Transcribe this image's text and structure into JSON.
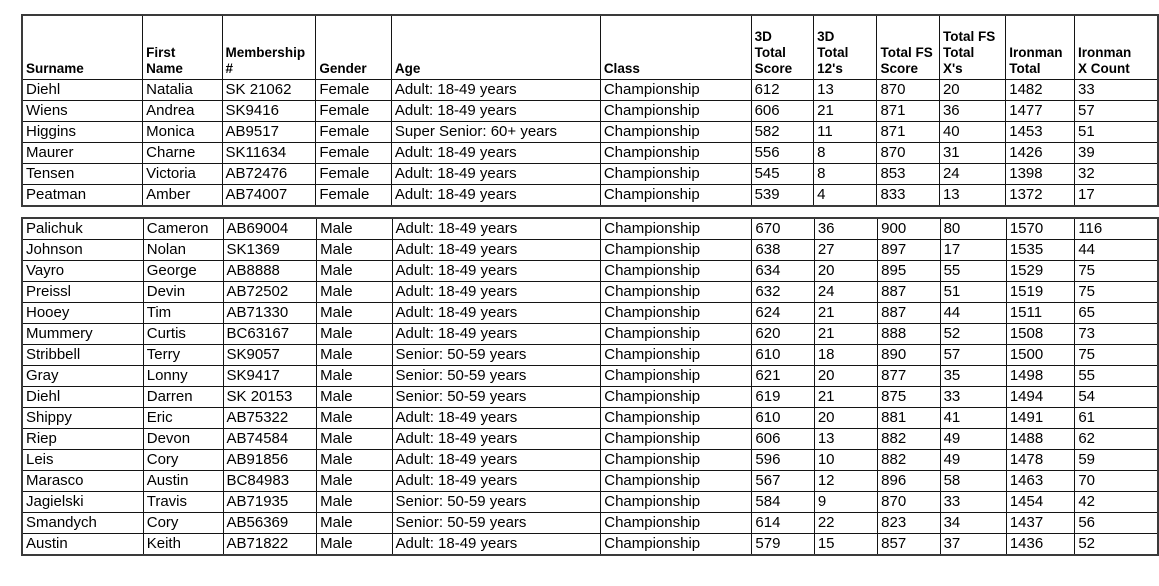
{
  "table": {
    "columns": [
      {
        "key": "surname",
        "label": "Surname"
      },
      {
        "key": "first-name",
        "label": "First\nName"
      },
      {
        "key": "membership",
        "label": "Membership\n#"
      },
      {
        "key": "gender",
        "label": "Gender"
      },
      {
        "key": "age",
        "label": "Age"
      },
      {
        "key": "class",
        "label": "Class"
      },
      {
        "key": "3d-total-score",
        "label": "3D\nTotal\nScore"
      },
      {
        "key": "3d-total-12s",
        "label": "3D\nTotal\n12's"
      },
      {
        "key": "total-fs-score",
        "label": "Total FS\nScore"
      },
      {
        "key": "total-fs-xs",
        "label": "Total FS\nTotal\nX's"
      },
      {
        "key": "ironman-total",
        "label": "Ironman\nTotal"
      },
      {
        "key": "ironman-x-count",
        "label": "Ironman\nX Count"
      }
    ],
    "groups": [
      {
        "name": "female",
        "rows": [
          [
            "Diehl",
            "Natalia",
            "SK 21062",
            "Female",
            "Adult: 18-49 years",
            "Championship",
            "612",
            "13",
            "870",
            "20",
            "1482",
            "33"
          ],
          [
            "Wiens",
            "Andrea",
            "SK9416",
            "Female",
            "Adult: 18-49 years",
            "Championship",
            "606",
            "21",
            "871",
            "36",
            "1477",
            "57"
          ],
          [
            "Higgins",
            "Monica",
            "AB9517",
            "Female",
            "Super Senior: 60+ years",
            "Championship",
            "582",
            "11",
            "871",
            "40",
            "1453",
            "51"
          ],
          [
            "Maurer",
            "Charne",
            "SK11634",
            "Female",
            "Adult: 18-49 years",
            "Championship",
            "556",
            "8",
            "870",
            "31",
            "1426",
            "39"
          ],
          [
            "Tensen",
            "Victoria",
            "AB72476",
            "Female",
            "Adult: 18-49 years",
            "Championship",
            "545",
            "8",
            "853",
            "24",
            "1398",
            "32"
          ],
          [
            "Peatman",
            "Amber",
            "AB74007",
            "Female",
            "Adult: 18-49 years",
            "Championship",
            "539",
            "4",
            "833",
            "13",
            "1372",
            "17"
          ]
        ]
      },
      {
        "name": "male",
        "rows": [
          [
            "Palichuk",
            "Cameron",
            "AB69004",
            "Male",
            "Adult: 18-49 years",
            "Championship",
            "670",
            "36",
            "900",
            "80",
            "1570",
            "116"
          ],
          [
            "Johnson",
            "Nolan",
            "SK1369",
            "Male",
            "Adult: 18-49 years",
            "Championship",
            "638",
            "27",
            "897",
            "17",
            "1535",
            "44"
          ],
          [
            "Vayro",
            "George",
            "AB8888",
            "Male",
            "Adult: 18-49 years",
            "Championship",
            "634",
            "20",
            "895",
            "55",
            "1529",
            "75"
          ],
          [
            "Preissl",
            "Devin",
            "AB72502",
            "Male",
            "Adult: 18-49 years",
            "Championship",
            "632",
            "24",
            "887",
            "51",
            "1519",
            "75"
          ],
          [
            "Hooey",
            "Tim",
            "AB71330",
            "Male",
            "Adult: 18-49 years",
            "Championship",
            "624",
            "21",
            "887",
            "44",
            "1511",
            "65"
          ],
          [
            "Mummery",
            "Curtis",
            "BC63167",
            "Male",
            "Adult: 18-49 years",
            "Championship",
            "620",
            "21",
            "888",
            "52",
            "1508",
            "73"
          ],
          [
            "Stribbell",
            "Terry",
            "SK9057",
            "Male",
            "Senior: 50-59 years",
            "Championship",
            "610",
            "18",
            "890",
            "57",
            "1500",
            "75"
          ],
          [
            "Gray",
            "Lonny",
            "SK9417",
            "Male",
            "Senior: 50-59 years",
            "Championship",
            "621",
            "20",
            "877",
            "35",
            "1498",
            "55"
          ],
          [
            "Diehl",
            "Darren",
            "SK 20153",
            "Male",
            "Senior: 50-59 years",
            "Championship",
            "619",
            "21",
            "875",
            "33",
            "1494",
            "54"
          ],
          [
            "Shippy",
            "Eric",
            "AB75322",
            "Male",
            "Adult: 18-49 years",
            "Championship",
            "610",
            "20",
            "881",
            "41",
            "1491",
            "61"
          ],
          [
            "Riep",
            "Devon",
            "AB74584",
            "Male",
            "Adult: 18-49 years",
            "Championship",
            "606",
            "13",
            "882",
            "49",
            "1488",
            "62"
          ],
          [
            "Leis",
            "Cory",
            "AB91856",
            "Male",
            "Adult: 18-49 years",
            "Championship",
            "596",
            "10",
            "882",
            "49",
            "1478",
            "59"
          ],
          [
            "Marasco",
            "Austin",
            "BC84983",
            "Male",
            "Adult: 18-49 years",
            "Championship",
            "567",
            "12",
            "896",
            "58",
            "1463",
            "70"
          ],
          [
            "Jagielski",
            "Travis",
            "AB71935",
            "Male",
            "Senior: 50-59 years",
            "Championship",
            "584",
            "9",
            "870",
            "33",
            "1454",
            "42"
          ],
          [
            "Smandych",
            "Cory",
            "AB56369",
            "Male",
            "Senior: 50-59 years",
            "Championship",
            "614",
            "22",
            "823",
            "34",
            "1437",
            "56"
          ],
          [
            "Austin",
            "Keith",
            "AB71822",
            "Male",
            "Adult: 18-49 years",
            "Championship",
            "579",
            "15",
            "857",
            "37",
            "1436",
            "52"
          ]
        ]
      }
    ]
  }
}
